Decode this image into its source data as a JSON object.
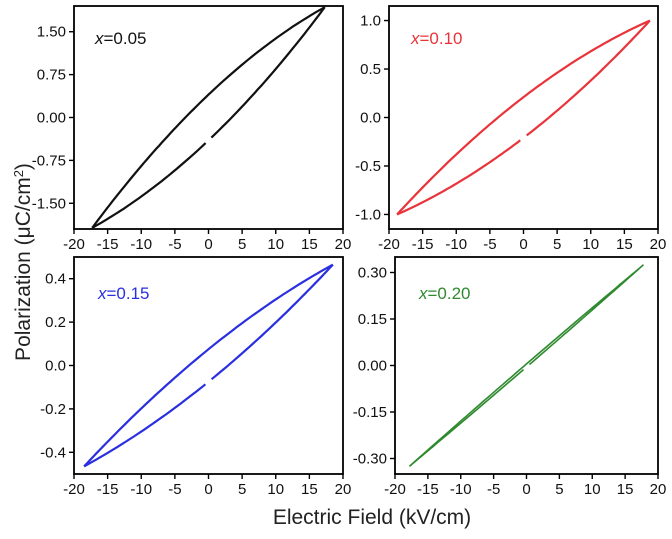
{
  "figure": {
    "ylabel_prefix": "Polarization (μC/cm",
    "ylabel_sup": "2",
    "ylabel_suffix": ")",
    "xlabel": "Electric Field (kV/cm)"
  },
  "chart_data": [
    {
      "type": "line",
      "label_var": "x",
      "label_value": "=0.05",
      "color": "#111111",
      "xlim": [
        -20,
        20
      ],
      "ylim": [
        -1.95,
        1.95
      ],
      "xticks": [
        "-20",
        "-15",
        "-10",
        "-5",
        "0",
        "5",
        "10",
        "15",
        "20"
      ],
      "xtick_values": [
        -20,
        -15,
        -10,
        -5,
        0,
        5,
        10,
        15,
        20
      ],
      "yticks": [
        "1.50",
        "0.75",
        "0.00",
        "-0.75",
        "-1.50"
      ],
      "ytick_values": [
        1.5,
        0.75,
        0.0,
        -0.75,
        -1.5
      ],
      "loop": {
        "emax": 17.3,
        "pmax": 1.93,
        "pr": 0.4,
        "upper_start": 0.0,
        "lower_end": -0.8
      }
    },
    {
      "type": "line",
      "label_var": "x",
      "label_value": "=0.10",
      "color": "#e8343a",
      "xlim": [
        -20,
        20
      ],
      "ylim": [
        -1.15,
        1.15
      ],
      "xticks": [
        "-20",
        "-15",
        "-10",
        "-5",
        "0",
        "5",
        "10",
        "15",
        "20"
      ],
      "xtick_values": [
        -20,
        -15,
        -10,
        -5,
        0,
        5,
        10,
        15,
        20
      ],
      "yticks": [
        "1.0",
        "0.5",
        "0.0",
        "-0.5",
        "-1.0"
      ],
      "ytick_values": [
        1.0,
        0.5,
        0.0,
        -0.5,
        -1.0
      ],
      "loop": {
        "emax": 18.8,
        "pmax": 1.0,
        "pr": 0.21,
        "upper_start": -0.3,
        "lower_end": -0.33
      }
    },
    {
      "type": "line",
      "label_var": "x",
      "label_value": "=0.15",
      "color": "#2a2fe0",
      "xlim": [
        -20,
        20
      ],
      "ylim": [
        -0.5,
        0.5
      ],
      "xticks": [
        "-20",
        "-15",
        "-10",
        "-5",
        "0",
        "5",
        "10",
        "15",
        "20"
      ],
      "xtick_values": [
        -20,
        -15,
        -10,
        -5,
        0,
        5,
        10,
        15,
        20
      ],
      "yticks": [
        "0.4",
        "0.2",
        "0.0",
        "-0.2",
        "-0.4"
      ],
      "ytick_values": [
        0.4,
        0.2,
        0.0,
        -0.2,
        -0.4
      ],
      "loop": {
        "emax": 18.5,
        "pmax": 0.465,
        "pr": 0.075,
        "upper_start": -0.04,
        "lower_end": -0.11
      }
    },
    {
      "type": "line",
      "label_var": "x",
      "label_value": "=0.20",
      "color": "#2f8a2f",
      "xlim": [
        -20,
        20
      ],
      "ylim": [
        -0.35,
        0.35
      ],
      "xticks": [
        "-20",
        "-15",
        "-10",
        "-5",
        "0",
        "5",
        "10",
        "15",
        "20"
      ],
      "xtick_values": [
        -20,
        -15,
        -10,
        -5,
        0,
        5,
        10,
        15,
        20
      ],
      "yticks": [
        "0.30",
        "0.15",
        "0.00",
        "-0.15",
        "-0.30"
      ],
      "ytick_values": [
        0.3,
        0.15,
        0.0,
        -0.15,
        -0.3
      ],
      "loop": {
        "emax": 17.8,
        "pmax": 0.325,
        "pr": 0.005,
        "upper_start": -0.003,
        "lower_end": -0.012
      }
    }
  ]
}
